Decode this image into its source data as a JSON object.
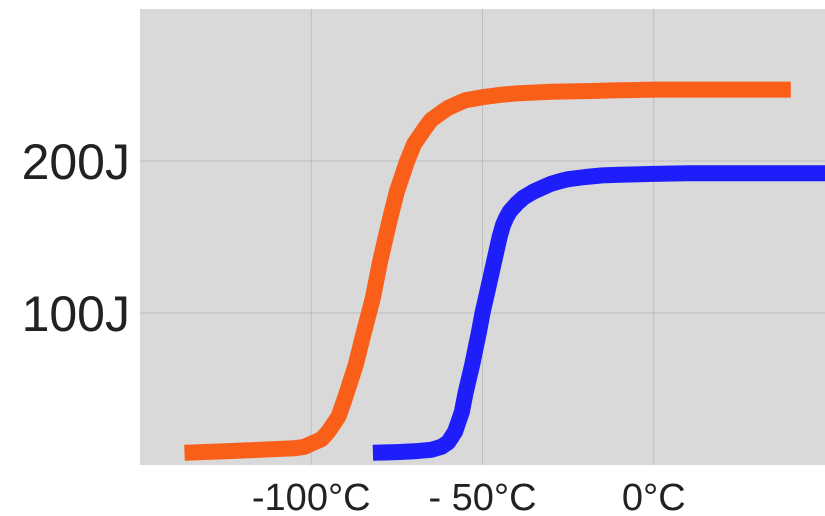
{
  "chart_data": {
    "type": "line",
    "title": "",
    "xlabel": "",
    "ylabel": "",
    "xlim": [
      -150,
      50
    ],
    "ylim": [
      0,
      300
    ],
    "x_ticks": [
      {
        "value": -100,
        "label": "-100°C"
      },
      {
        "value": -50,
        "label": "- 50°C"
      },
      {
        "value": 0,
        "label": "0°C"
      }
    ],
    "y_ticks": [
      {
        "value": 100,
        "label": "100J"
      },
      {
        "value": 200,
        "label": "200J"
      }
    ],
    "grid": true,
    "legend": "none",
    "colors": {
      "plot_background": "#d9d9d9",
      "grid": "#bdbdbd",
      "series_1": "#fa5f1a",
      "series_2": "#1e1efa"
    },
    "series": [
      {
        "color": "#fa5f1a",
        "x": [
          -137,
          -125,
          -115,
          -110,
          -105,
          -102,
          -100,
          -97,
          -95,
          -92,
          -90,
          -87,
          -85,
          -82,
          -80,
          -77,
          -75,
          -72,
          -70,
          -67,
          -65,
          -62,
          -60,
          -57,
          -55,
          -50,
          -45,
          -40,
          -30,
          -20,
          -10,
          0,
          10,
          20,
          30,
          40
        ],
        "y": [
          8,
          9,
          10,
          10.5,
          11,
          12,
          14,
          17,
          22,
          32,
          45,
          66,
          84,
          110,
          133,
          162,
          180,
          200,
          211,
          221,
          227,
          232,
          235,
          238,
          240,
          242,
          243.5,
          244.5,
          245.5,
          246,
          246.5,
          247,
          247,
          247,
          247,
          247
        ]
      },
      {
        "color": "#1e1efa",
        "x": [
          -82,
          -75,
          -70,
          -65,
          -62,
          -60,
          -58,
          -56,
          -55,
          -53,
          -51,
          -50,
          -48,
          -46,
          -45,
          -44,
          -43,
          -42,
          -40,
          -38,
          -35,
          -32,
          -30,
          -27,
          -25,
          -20,
          -15,
          -10,
          0,
          10,
          20,
          30,
          40,
          50
        ],
        "y": [
          8,
          8.5,
          9,
          10,
          12,
          15,
          22,
          35,
          47,
          66,
          88,
          100,
          120,
          140,
          150,
          158,
          163,
          167,
          172,
          176,
          180,
          183,
          185,
          187,
          188,
          189.5,
          190.5,
          191,
          191.5,
          192,
          192,
          192,
          192,
          192
        ]
      }
    ]
  }
}
